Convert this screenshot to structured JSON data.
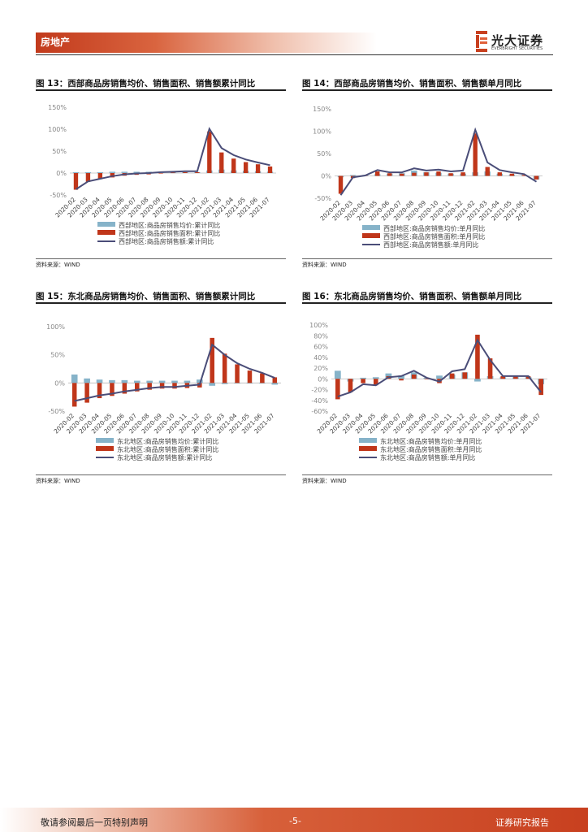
{
  "header": {
    "section": "房地产",
    "logo_cn": "光大证券",
    "logo_en": "EVERBRIGHT SECURITIES"
  },
  "colors": {
    "blue": "#86b3c9",
    "red": "#c0361a",
    "line": "#4a4d78",
    "accent": "#c8401f"
  },
  "figures": [
    {
      "title": "图 13：西部商品房销售均价、销售面积、销售额累计同比",
      "source": "资料来源：WIND"
    },
    {
      "title": "图 14：西部商品房销售均价、销售面积、销售额单月同比",
      "source": "资料来源：WIND"
    },
    {
      "title": "图 15：东北商品房销售均价、销售面积、销售额累计同比",
      "source": "资料来源：WIND"
    },
    {
      "title": "图 16：东北商品房销售均价、销售面积、销售额单月同比",
      "source": "资料来源：WIND"
    }
  ],
  "chart_data": [
    {
      "type": "bar",
      "title": "西部商品房销售均价、销售面积、销售额累计同比",
      "categories": [
        "2020-02",
        "2020-03",
        "2020-04",
        "2020-05",
        "2020-06",
        "2020-07",
        "2020-08",
        "2020-09",
        "2020-10",
        "2020-11",
        "2020-12",
        "2021-02",
        "2021-03",
        "2021-04",
        "2021-05",
        "2021-06",
        "2021-07"
      ],
      "ylim": [
        -50,
        150
      ],
      "yticks": [
        -50,
        0,
        50,
        100,
        150
      ],
      "series": [
        {
          "name": "西部地区:商品房销售均价:累计同比",
          "kind": "bar",
          "values": [
            2,
            2,
            2,
            3,
            3,
            3,
            3,
            2,
            2,
            2,
            2,
            6,
            8,
            6,
            5,
            4,
            3
          ]
        },
        {
          "name": "西部地区:商品房销售面积:累计同比",
          "kind": "bar",
          "values": [
            -38,
            -20,
            -14,
            -10,
            -6,
            -4,
            -3,
            -1,
            1,
            2,
            2,
            95,
            47,
            33,
            25,
            20,
            15
          ]
        },
        {
          "name": "西部地区:商品房销售额:累计同比",
          "kind": "line",
          "values": [
            -37,
            -19,
            -13,
            -7,
            -3,
            -1,
            0,
            2,
            3,
            4,
            4,
            101,
            57,
            41,
            31,
            24,
            18
          ]
        }
      ]
    },
    {
      "type": "bar",
      "title": "西部商品房销售均价、销售面积、销售额单月同比",
      "categories": [
        "2020-02",
        "2020-03",
        "2020-04",
        "2020-05",
        "2020-06",
        "2020-07",
        "2020-08",
        "2020-09",
        "2020-10",
        "2020-11",
        "2020-12",
        "2021-02",
        "2021-03",
        "2021-04",
        "2021-05",
        "2021-06",
        "2021-07"
      ],
      "ylim": [
        -50,
        150
      ],
      "yticks": [
        -50,
        0,
        50,
        100,
        150
      ],
      "series": [
        {
          "name": "西部地区:商品房销售均价:单月同比",
          "kind": "bar",
          "values": [
            -3,
            2,
            2,
            4,
            5,
            6,
            12,
            8,
            7,
            5,
            5,
            8,
            10,
            5,
            3,
            2,
            -8
          ]
        },
        {
          "name": "西部地区:商品房销售面积:单月同比",
          "kind": "bar",
          "values": [
            -40,
            -5,
            1,
            10,
            6,
            5,
            7,
            8,
            10,
            6,
            8,
            95,
            20,
            8,
            5,
            2,
            -8
          ]
        },
        {
          "name": "西部地区:商品房销售额:单月同比",
          "kind": "line",
          "values": [
            -43,
            -3,
            1,
            13,
            8,
            8,
            17,
            12,
            14,
            10,
            12,
            103,
            30,
            13,
            8,
            4,
            -13
          ]
        }
      ]
    },
    {
      "type": "bar",
      "title": "东北商品房销售均价、销售面积、销售额累计同比",
      "categories": [
        "2020-02",
        "2020-03",
        "2020-04",
        "2020-05",
        "2020-06",
        "2020-07",
        "2020-08",
        "2020-09",
        "2020-10",
        "2020-11",
        "2020-12",
        "2021-02",
        "2021-03",
        "2021-04",
        "2021-05",
        "2021-06",
        "2021-07"
      ],
      "ylim": [
        -50,
        100
      ],
      "yticks": [
        -50,
        0,
        50,
        100
      ],
      "series": [
        {
          "name": "东北地区:商品房销售均价:累计同比",
          "kind": "bar",
          "values": [
            15,
            8,
            6,
            5,
            5,
            4,
            4,
            4,
            4,
            4,
            6,
            -5,
            -2,
            -1,
            -1,
            -1,
            -3
          ]
        },
        {
          "name": "东北地区:商品房销售面积:累计同比",
          "kind": "bar",
          "values": [
            -42,
            -35,
            -27,
            -23,
            -19,
            -15,
            -12,
            -10,
            -10,
            -9,
            -8,
            80,
            52,
            33,
            22,
            17,
            10
          ]
        },
        {
          "name": "东北地区:商品房销售额:累计同比",
          "kind": "line",
          "values": [
            -32,
            -27,
            -22,
            -19,
            -15,
            -12,
            -9,
            -7,
            -7,
            -5,
            -3,
            68,
            50,
            35,
            25,
            18,
            9
          ]
        }
      ]
    },
    {
      "type": "bar",
      "title": "东北商品房销售均价、销售面积、销售额单月同比",
      "categories": [
        "2020-02",
        "2020-03",
        "2020-04",
        "2020-05",
        "2020-06",
        "2020-07",
        "2020-08",
        "2020-09",
        "2020-10",
        "2020-11",
        "2020-12",
        "2021-02",
        "2021-03",
        "2021-04",
        "2021-05",
        "2021-06",
        "2021-07"
      ],
      "ylim": [
        -60,
        100
      ],
      "yticks": [
        -60,
        -40,
        -20,
        0,
        20,
        40,
        60,
        80,
        100
      ],
      "series": [
        {
          "name": "东北地区:商品房销售均价:单月同比",
          "kind": "bar",
          "values": [
            15,
            -5,
            2,
            3,
            10,
            6,
            12,
            2,
            6,
            8,
            12,
            -5,
            5,
            3,
            3,
            3,
            -10
          ]
        },
        {
          "name": "东北地区:商品房销售面积:单月同比",
          "kind": "bar",
          "values": [
            -38,
            -25,
            -8,
            -12,
            5,
            -3,
            8,
            0,
            -8,
            10,
            12,
            82,
            38,
            5,
            5,
            5,
            -30
          ]
        },
        {
          "name": "东北地区:商品房销售额:单月同比",
          "kind": "line",
          "values": [
            -33,
            -25,
            -10,
            -12,
            3,
            5,
            15,
            2,
            -5,
            14,
            18,
            72,
            35,
            5,
            5,
            5,
            -25
          ]
        }
      ]
    }
  ],
  "footer": {
    "disclaimer": "敬请参阅最后一页特别声明",
    "page": "-5-",
    "label": "证券研究报告"
  }
}
